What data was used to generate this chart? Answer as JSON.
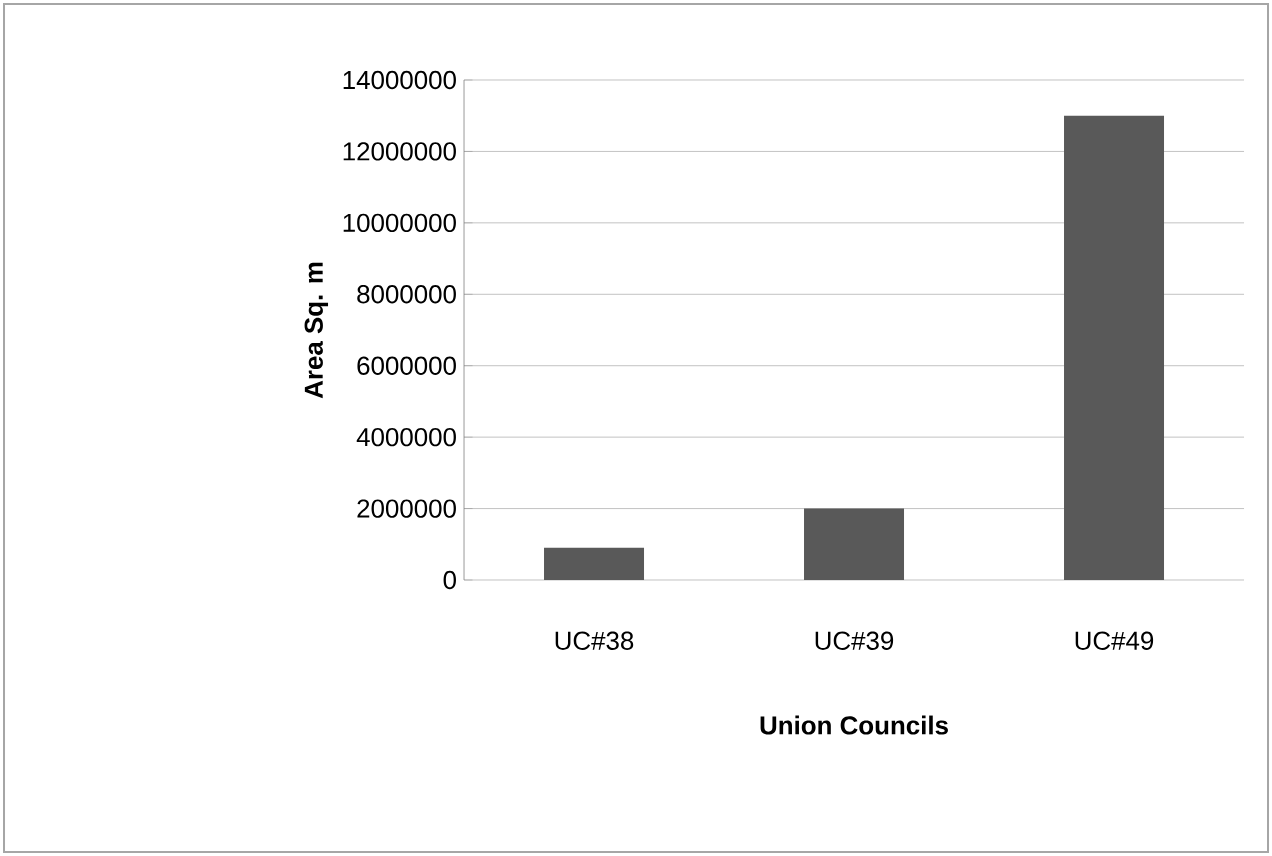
{
  "chart_data": {
    "type": "bar",
    "xlabel": "Union Councils",
    "ylabel": "Area Sq. m",
    "categories": [
      "UC#38",
      "UC#39",
      "UC#49"
    ],
    "values": [
      900000,
      2000000,
      13000000
    ],
    "color": "#595959",
    "ylim": [
      0,
      14000000
    ],
    "yticks": [
      0,
      2000000,
      4000000,
      6000000,
      8000000,
      10000000,
      12000000,
      14000000
    ],
    "grid": "y"
  }
}
